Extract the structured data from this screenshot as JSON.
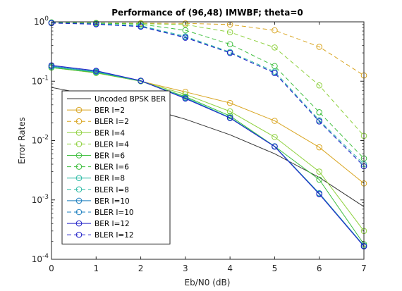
{
  "chart_data": {
    "type": "line",
    "title": "Performance of (96,48) IMWBF; theta=0",
    "xlabel": "Eb/N0 (dB)",
    "ylabel": "Error Rates",
    "x": [
      0,
      1,
      2,
      3,
      4,
      5,
      6,
      7
    ],
    "xlim": [
      0,
      7
    ],
    "ylim": [
      0.0001,
      1
    ],
    "yscale": "log",
    "x_ticks": [
      "0",
      "1",
      "2",
      "3",
      "4",
      "5",
      "6",
      "7"
    ],
    "y_ticks": [
      {
        "base": "10",
        "exp": "0"
      },
      {
        "base": "10",
        "exp": "-1"
      },
      {
        "base": "10",
        "exp": "-2"
      },
      {
        "base": "10",
        "exp": "-3"
      },
      {
        "base": "10",
        "exp": "-4"
      }
    ],
    "grid": false,
    "legend_position": "lower-left",
    "series": [
      {
        "name": "Uncoded BPSK BER",
        "color": "#333333",
        "dash": false,
        "marker": false,
        "values": [
          0.0786,
          0.0563,
          0.0375,
          0.0229,
          0.0125,
          0.006,
          0.00239,
          0.00077
        ]
      },
      {
        "name": "BER I=2",
        "color": "#D9A521",
        "dash": false,
        "marker": true,
        "values": [
          0.17,
          0.138,
          0.1,
          0.066,
          0.043,
          0.0215,
          0.0077,
          0.0019
        ]
      },
      {
        "name": "BLER I=2",
        "color": "#D9A521",
        "dash": true,
        "marker": true,
        "values": [
          0.98,
          0.96,
          0.95,
          0.94,
          0.9,
          0.72,
          0.38,
          0.125
        ]
      },
      {
        "name": "BER I=4",
        "color": "#8FD13F",
        "dash": false,
        "marker": true,
        "values": [
          0.17,
          0.138,
          0.1,
          0.06,
          0.031,
          0.0115,
          0.003,
          0.0003
        ]
      },
      {
        "name": "BLER I=4",
        "color": "#8FD13F",
        "dash": true,
        "marker": true,
        "values": [
          0.98,
          0.96,
          0.93,
          0.9,
          0.67,
          0.37,
          0.085,
          0.012
        ]
      },
      {
        "name": "BER I=6",
        "color": "#3FBF3F",
        "dash": false,
        "marker": true,
        "values": [
          0.17,
          0.14,
          0.1,
          0.055,
          0.026,
          0.008,
          0.0022,
          0.00018
        ]
      },
      {
        "name": "BLER I=6",
        "color": "#3FBF3F",
        "dash": true,
        "marker": true,
        "values": [
          0.98,
          0.95,
          0.91,
          0.72,
          0.42,
          0.18,
          0.03,
          0.005
        ]
      },
      {
        "name": "BER I=8",
        "color": "#2EBBA6",
        "dash": false,
        "marker": true,
        "values": [
          0.175,
          0.143,
          0.101,
          0.053,
          0.0245,
          0.008,
          0.0013,
          0.00017
        ]
      },
      {
        "name": "BLER I=8",
        "color": "#2EBBA6",
        "dash": true,
        "marker": true,
        "values": [
          0.97,
          0.93,
          0.86,
          0.57,
          0.31,
          0.145,
          0.022,
          0.004
        ]
      },
      {
        "name": "BER I=10",
        "color": "#1D7FBF",
        "dash": false,
        "marker": true,
        "values": [
          0.18,
          0.146,
          0.102,
          0.052,
          0.024,
          0.008,
          0.00128,
          0.000168
        ]
      },
      {
        "name": "BLER I=10",
        "color": "#1D7FBF",
        "dash": true,
        "marker": true,
        "values": [
          0.96,
          0.92,
          0.84,
          0.55,
          0.3,
          0.138,
          0.021,
          0.0037
        ]
      },
      {
        "name": "BER I=12",
        "color": "#2222C8",
        "dash": false,
        "marker": true,
        "values": [
          0.185,
          0.15,
          0.102,
          0.051,
          0.024,
          0.0079,
          0.00125,
          0.000165
        ]
      },
      {
        "name": "BLER I=12",
        "color": "#2222C8",
        "dash": true,
        "marker": true,
        "values": [
          0.95,
          0.91,
          0.83,
          0.54,
          0.3,
          0.137,
          0.021,
          0.0037
        ]
      }
    ]
  }
}
